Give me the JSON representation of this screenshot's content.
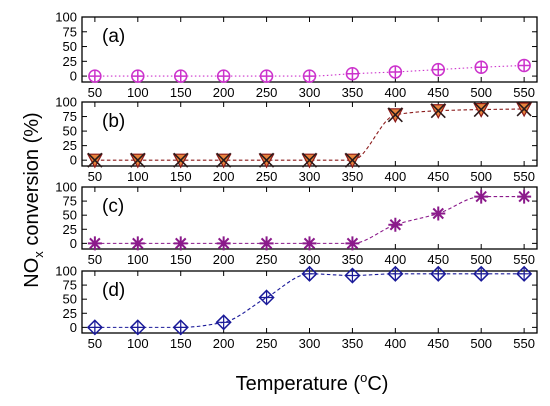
{
  "figure": {
    "xlabel": {
      "pre": "Temperature (",
      "sup": "o",
      "post": "C)"
    },
    "ylabel": {
      "pre": "NO",
      "sub": "x",
      "post": " conversion (%)"
    }
  },
  "chart_data": [
    {
      "type": "line",
      "panel_label": "(a)",
      "x": [
        50,
        100,
        150,
        200,
        250,
        300,
        350,
        400,
        450,
        500,
        550
      ],
      "xticks": [
        50,
        100,
        150,
        200,
        250,
        300,
        350,
        400,
        450,
        500,
        550
      ],
      "yticks": [
        0,
        25,
        50,
        75,
        100
      ],
      "xlim": [
        35,
        565
      ],
      "ylim": [
        -10,
        100
      ],
      "series": [
        {
          "values": [
            0,
            0,
            0,
            0,
            0,
            0,
            4,
            7,
            11,
            15,
            18
          ],
          "color": "#cc33cc",
          "marker": "circle-plus",
          "line": "dotted"
        }
      ]
    },
    {
      "type": "line",
      "panel_label": "(b)",
      "x": [
        50,
        100,
        150,
        200,
        250,
        300,
        350,
        400,
        450,
        500,
        550
      ],
      "xticks": [
        50,
        100,
        150,
        200,
        250,
        300,
        350,
        400,
        450,
        500,
        550
      ],
      "yticks": [
        0,
        25,
        50,
        75,
        100
      ],
      "xlim": [
        35,
        565
      ],
      "ylim": [
        -10,
        100
      ],
      "series": [
        {
          "values": [
            0,
            0,
            0,
            0,
            0,
            0,
            0,
            78,
            85,
            87,
            88
          ],
          "color": "#8b1a1a",
          "marker": "triangle-x",
          "line": "dashed"
        }
      ]
    },
    {
      "type": "line",
      "panel_label": "(c)",
      "x": [
        50,
        100,
        150,
        200,
        250,
        300,
        350,
        400,
        450,
        500,
        550
      ],
      "xticks": [
        50,
        100,
        150,
        200,
        250,
        300,
        350,
        400,
        450,
        500,
        550
      ],
      "yticks": [
        0,
        25,
        50,
        75,
        100
      ],
      "xlim": [
        35,
        565
      ],
      "ylim": [
        -10,
        100
      ],
      "series": [
        {
          "values": [
            0,
            0,
            0,
            0,
            0,
            0,
            0,
            33,
            53,
            83,
            83
          ],
          "color": "#8b1a8b",
          "marker": "star",
          "line": "dashed"
        }
      ]
    },
    {
      "type": "line",
      "panel_label": "(d)",
      "x": [
        50,
        100,
        150,
        200,
        250,
        300,
        350,
        400,
        450,
        500,
        550
      ],
      "xticks": [
        50,
        100,
        150,
        200,
        250,
        300,
        350,
        400,
        450,
        500,
        550
      ],
      "yticks": [
        0,
        25,
        50,
        75,
        100
      ],
      "xlim": [
        35,
        565
      ],
      "ylim": [
        -10,
        100
      ],
      "series": [
        {
          "values": [
            0,
            0,
            0,
            9,
            53,
            95,
            92,
            95,
            95,
            95,
            95
          ],
          "color": "#1a1a99",
          "marker": "diamond-plus",
          "line": "dashed"
        }
      ]
    }
  ]
}
